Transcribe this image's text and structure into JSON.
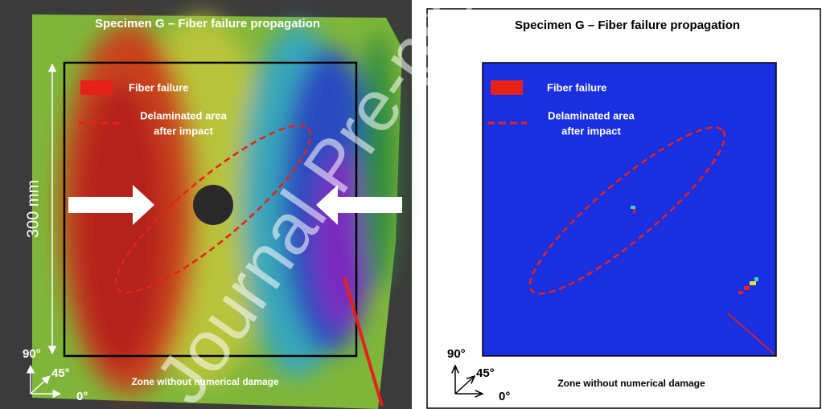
{
  "left_panel": {
    "title": "Specimen G – Fiber failure propagation",
    "dimension_label": "300 mm",
    "legend": {
      "fiber_failure": "Fiber failure",
      "delaminated_area": [
        "Delaminated area",
        "after impact"
      ]
    },
    "axes": {
      "y": "90°",
      "diagonal": "45°",
      "x": "0°"
    },
    "zone_label": "Zone without numerical damage"
  },
  "right_panel": {
    "title": "Specimen G – Fiber failure propagation",
    "legend": {
      "fiber_failure": "Fiber failure",
      "delaminated_area": [
        "Delaminated area",
        "after impact"
      ]
    },
    "axes": {
      "y": "90°",
      "diagonal": "45°",
      "x": "0°"
    },
    "zone_label": "Zone without numerical damage"
  },
  "watermark": "Journal Pre-proof"
}
